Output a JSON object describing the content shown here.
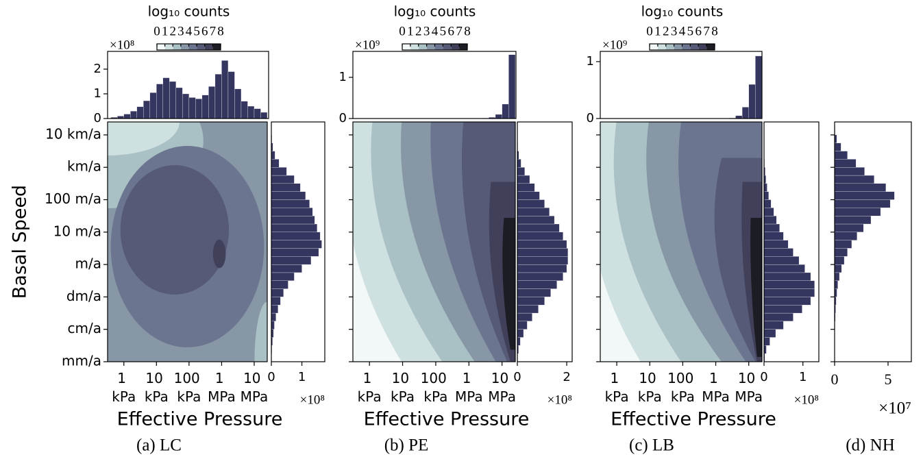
{
  "chart_data": [
    {
      "type": "joint",
      "caption": "(a) LC",
      "xlabel": "Effective Pressure",
      "ylabel": "Basal Speed",
      "xlim": [
        2.5,
        7.4
      ],
      "xticks": [
        {
          "value": 3,
          "label": "1 kPa"
        },
        {
          "value": 4,
          "label": "10 kPa"
        },
        {
          "value": 5,
          "label": "100 kPa"
        },
        {
          "value": 6,
          "label": "1 MPa"
        },
        {
          "value": 7,
          "label": "10 MPa"
        }
      ],
      "ylim": [
        -3,
        4.4
      ],
      "yticks": [
        {
          "value": 4,
          "label": "10 km/a"
        },
        {
          "value": 3,
          "label": "km/a"
        },
        {
          "value": 2,
          "label": "100 m/a"
        },
        {
          "value": 1,
          "label": "10 m/a"
        },
        {
          "value": 0,
          "label": "m/a"
        },
        {
          "value": -1,
          "label": "dm/a"
        },
        {
          "value": -2,
          "label": "cm/a"
        },
        {
          "value": -3,
          "label": "mm/a"
        }
      ],
      "colorbar": {
        "label": "log₁₀ counts",
        "ticks": [
          0,
          1,
          2,
          3,
          4,
          5,
          6,
          7,
          8
        ],
        "colors": [
          "#f2f7f7",
          "#cfe0e0",
          "#a9c0c4",
          "#8797a6",
          "#6c7590",
          "#565a76",
          "#40405a",
          "#1c1c24"
        ]
      },
      "top_hist": {
        "offset": "×10⁸",
        "color": "#35365f",
        "ylim": [
          0,
          2.72
        ],
        "yticks": [
          0,
          1,
          2
        ],
        "bins": [
          2.6,
          2.8,
          3.0,
          3.2,
          3.4,
          3.6,
          3.8,
          4.0,
          4.2,
          4.4,
          4.6,
          4.8,
          5.0,
          5.2,
          5.4,
          5.6,
          5.8,
          6.0,
          6.2,
          6.4,
          6.6,
          6.8,
          7.0,
          7.2,
          7.4
        ],
        "values": [
          0.05,
          0.1,
          0.18,
          0.3,
          0.48,
          0.72,
          1.05,
          1.4,
          1.65,
          1.5,
          1.25,
          1.0,
          0.85,
          0.8,
          0.95,
          1.3,
          1.8,
          2.35,
          1.9,
          1.2,
          0.7,
          0.5,
          0.4,
          0.25
        ]
      },
      "right_hist": {
        "offset": "×10⁸",
        "color": "#35365f",
        "xlim": [
          0,
          1.75
        ],
        "xticks": [
          0,
          1
        ],
        "bins": [
          -3,
          -2.75,
          -2.5,
          -2.25,
          -2,
          -1.75,
          -1.5,
          -1.25,
          -1,
          -0.75,
          -0.5,
          -0.25,
          0,
          0.25,
          0.5,
          0.75,
          1,
          1.25,
          1.5,
          1.75,
          2,
          2.25,
          2.5,
          2.75,
          3,
          3.25,
          3.5,
          3.75,
          4,
          4.25
        ],
        "values": [
          0.01,
          0.02,
          0.04,
          0.07,
          0.1,
          0.15,
          0.22,
          0.3,
          0.4,
          0.55,
          0.75,
          1.0,
          1.3,
          1.55,
          1.65,
          1.6,
          1.5,
          1.42,
          1.35,
          1.25,
          1.12,
          0.95,
          0.75,
          0.5,
          0.25,
          0.12,
          0.05,
          0.02,
          0.005
        ]
      }
    },
    {
      "type": "joint",
      "caption": "(b) PE",
      "xlabel": "Effective Pressure",
      "xlim": [
        2.5,
        7.4
      ],
      "xticks": [
        {
          "value": 3,
          "label": "1 kPa"
        },
        {
          "value": 4,
          "label": "10 kPa"
        },
        {
          "value": 5,
          "label": "100 kPa"
        },
        {
          "value": 6,
          "label": "1 MPa"
        },
        {
          "value": 7,
          "label": "10 MPa"
        }
      ],
      "ylim": [
        -3,
        4.4
      ],
      "colorbar": {
        "label": "log₁₀ counts",
        "ticks": [
          0,
          1,
          2,
          3,
          4,
          5,
          6,
          7,
          8
        ],
        "colors": [
          "#f2f7f7",
          "#cfe0e0",
          "#a9c0c4",
          "#8797a6",
          "#6c7590",
          "#565a76",
          "#40405a",
          "#1c1c24"
        ]
      },
      "top_hist": {
        "offset": "×10⁹",
        "color": "#35365f",
        "ylim": [
          0,
          1.63
        ],
        "yticks": [
          0,
          1
        ],
        "bins": [
          2.6,
          2.8,
          3.0,
          3.2,
          3.4,
          3.6,
          3.8,
          4.0,
          4.2,
          4.4,
          4.6,
          4.8,
          5.0,
          5.2,
          5.4,
          5.6,
          5.8,
          6.0,
          6.2,
          6.4,
          6.6,
          6.8,
          7.0,
          7.2,
          7.4
        ],
        "values": [
          0,
          0,
          0,
          0,
          0,
          0,
          0,
          0,
          0,
          0,
          0,
          0,
          0,
          0,
          0,
          0,
          0,
          0,
          0.005,
          0.01,
          0.03,
          0.1,
          0.35,
          1.55
        ]
      },
      "right_hist": {
        "offset": "×10⁸",
        "color": "#35365f",
        "xlim": [
          0,
          2.22
        ],
        "xticks": [
          0,
          2
        ],
        "bins": [
          -3,
          -2.75,
          -2.5,
          -2.25,
          -2,
          -1.75,
          -1.5,
          -1.25,
          -1,
          -0.75,
          -0.5,
          -0.25,
          0,
          0.25,
          0.5,
          0.75,
          1,
          1.25,
          1.5,
          1.75,
          2,
          2.25,
          2.5,
          2.75,
          3,
          3.25,
          3.5,
          3.75,
          4,
          4.25
        ],
        "values": [
          0.02,
          0.05,
          0.12,
          0.25,
          0.4,
          0.6,
          0.85,
          1.1,
          1.35,
          1.6,
          1.85,
          2.0,
          2.05,
          2.05,
          2.0,
          1.85,
          1.7,
          1.5,
          1.3,
          1.1,
          0.9,
          0.7,
          0.5,
          0.3,
          0.15,
          0.06,
          0.02,
          0.01,
          0.003
        ]
      }
    },
    {
      "type": "joint",
      "caption": "(c) LB",
      "xlabel": "Effective Pressure",
      "xlim": [
        2.5,
        7.4
      ],
      "xticks": [
        {
          "value": 3,
          "label": "1 kPa"
        },
        {
          "value": 4,
          "label": "10 kPa"
        },
        {
          "value": 5,
          "label": "100 kPa"
        },
        {
          "value": 6,
          "label": "1 MPa"
        },
        {
          "value": 7,
          "label": "10 MPa"
        }
      ],
      "ylim": [
        -3,
        4.4
      ],
      "colorbar": {
        "label": "log₁₀ counts",
        "ticks": [
          0,
          1,
          2,
          3,
          4,
          5,
          6,
          7,
          8
        ],
        "colors": [
          "#f2f7f7",
          "#cfe0e0",
          "#a9c0c4",
          "#8797a6",
          "#6c7590",
          "#565a76",
          "#40405a",
          "#1c1c24"
        ]
      },
      "top_hist": {
        "offset": "×10⁹",
        "color": "#35365f",
        "ylim": [
          0,
          1.18
        ],
        "yticks": [
          0,
          1
        ],
        "bins": [
          2.6,
          2.8,
          3.0,
          3.2,
          3.4,
          3.6,
          3.8,
          4.0,
          4.2,
          4.4,
          4.6,
          4.8,
          5.0,
          5.2,
          5.4,
          5.6,
          5.8,
          6.0,
          6.2,
          6.4,
          6.6,
          6.8,
          7.0,
          7.2,
          7.4
        ],
        "values": [
          0,
          0,
          0,
          0,
          0,
          0,
          0,
          0,
          0,
          0,
          0,
          0,
          0,
          0,
          0,
          0,
          0,
          0,
          0.005,
          0.01,
          0.05,
          0.2,
          0.6,
          1.1
        ]
      },
      "right_hist": {
        "offset": "×10⁸",
        "color": "#35365f",
        "xlim": [
          0,
          1.41
        ],
        "xticks": [
          0,
          1
        ],
        "bins": [
          -3,
          -2.75,
          -2.5,
          -2.25,
          -2,
          -1.75,
          -1.5,
          -1.25,
          -1,
          -0.75,
          -0.5,
          -0.25,
          0,
          0.25,
          0.5,
          0.75,
          1,
          1.25,
          1.5,
          1.75,
          2,
          2.25,
          2.5,
          2.75,
          3,
          3.25,
          3.5,
          3.75,
          4,
          4.25
        ],
        "values": [
          0.02,
          0.06,
          0.15,
          0.3,
          0.5,
          0.75,
          0.98,
          1.2,
          1.3,
          1.3,
          1.2,
          1.05,
          0.9,
          0.75,
          0.62,
          0.5,
          0.4,
          0.32,
          0.25,
          0.18,
          0.12,
          0.08,
          0.05,
          0.03,
          0.015,
          0.008,
          0.004,
          0.002,
          0.001
        ]
      }
    },
    {
      "type": "hist",
      "caption": "(d) NH",
      "ylim": [
        -3,
        4.4
      ],
      "right_hist": {
        "offset": "×10⁷",
        "color": "#35365f",
        "xlim": [
          0,
          7.18
        ],
        "xticks": [
          0,
          5
        ],
        "bins": [
          -3,
          -2.75,
          -2.5,
          -2.25,
          -2,
          -1.75,
          -1.5,
          -1.25,
          -1,
          -0.75,
          -0.5,
          -0.25,
          0,
          0.25,
          0.5,
          0.75,
          1,
          1.25,
          1.5,
          1.75,
          2,
          2.25,
          2.5,
          2.75,
          3,
          3.25,
          3.5,
          3.75,
          4,
          4.25
        ],
        "values": [
          0,
          0,
          0.01,
          0.02,
          0.04,
          0.07,
          0.1,
          0.15,
          0.22,
          0.3,
          0.45,
          0.65,
          0.9,
          1.2,
          1.6,
          2.1,
          2.7,
          3.4,
          4.3,
          5.2,
          5.6,
          4.8,
          3.7,
          2.8,
          2.0,
          1.2,
          0.6,
          0.2,
          0.05
        ]
      }
    }
  ]
}
